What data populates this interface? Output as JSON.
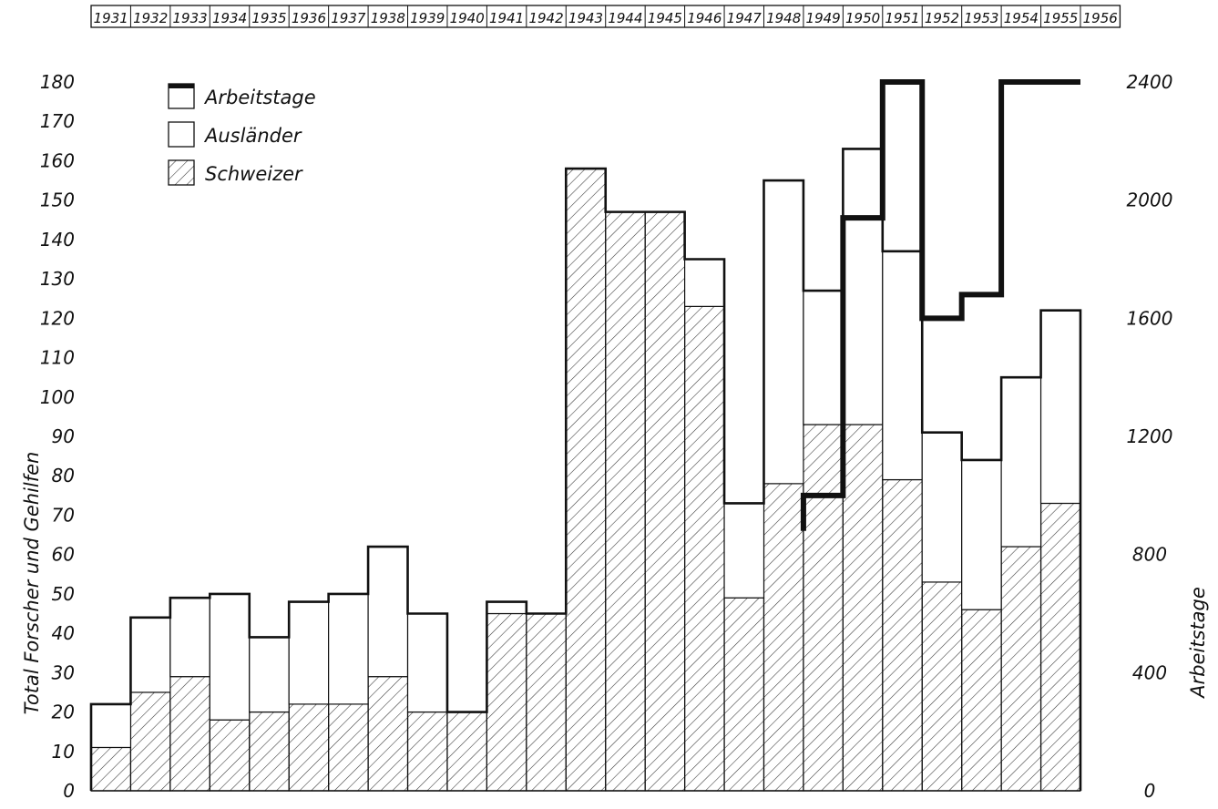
{
  "chart_data": {
    "type": "bar",
    "categories": [
      "1931",
      "1932",
      "1933",
      "1934",
      "1935",
      "1936",
      "1937",
      "1938",
      "1939",
      "1940",
      "1941",
      "1942",
      "1943",
      "1944",
      "1945",
      "1946",
      "1947",
      "1948",
      "1949",
      "1950",
      "1951",
      "1952",
      "1953",
      "1954",
      "1955",
      "1956"
    ],
    "series": [
      {
        "name": "Schweizer",
        "values": [
          11,
          25,
          29,
          18,
          20,
          22,
          22,
          29,
          20,
          20,
          45,
          45,
          158,
          147,
          147,
          123,
          49,
          78,
          93,
          93,
          79,
          53,
          46,
          62,
          73,
          null
        ]
      },
      {
        "name": "Ausländer",
        "values": [
          11,
          19,
          20,
          32,
          19,
          26,
          28,
          33,
          25,
          0,
          3,
          0,
          0,
          0,
          0,
          12,
          24,
          77,
          34,
          70,
          58,
          38,
          38,
          43,
          49,
          null
        ]
      },
      {
        "name": "Arbeitstage",
        "values": [
          null,
          null,
          null,
          null,
          null,
          null,
          null,
          null,
          null,
          null,
          null,
          null,
          null,
          null,
          null,
          null,
          null,
          null,
          1000,
          1940,
          2400,
          1600,
          1680,
          2400,
          2400,
          null
        ]
      }
    ],
    "arbeitstage_start_1949": 880,
    "ylabel": "Total Forscher und Gehilfen",
    "ylabel_right": "Arbeitstage",
    "ylim": [
      0,
      180
    ],
    "ylim_right": [
      0,
      2400
    ],
    "yticks_left": [
      "0",
      "10",
      "20",
      "30",
      "40",
      "50",
      "60",
      "70",
      "80",
      "90",
      "100",
      "110",
      "120",
      "130",
      "140",
      "150",
      "160",
      "170",
      "180"
    ],
    "yticks_right": [
      "0",
      "400",
      "800",
      "1200",
      "1600",
      "2000",
      "2400"
    ],
    "legend": {
      "placement": "top-left",
      "items": [
        "Arbeitstage",
        "Ausländer",
        "Schweizer"
      ]
    },
    "grid": false,
    "colors": {
      "line": "#111111",
      "hatch": "#333333",
      "background": "#ffffff"
    }
  }
}
